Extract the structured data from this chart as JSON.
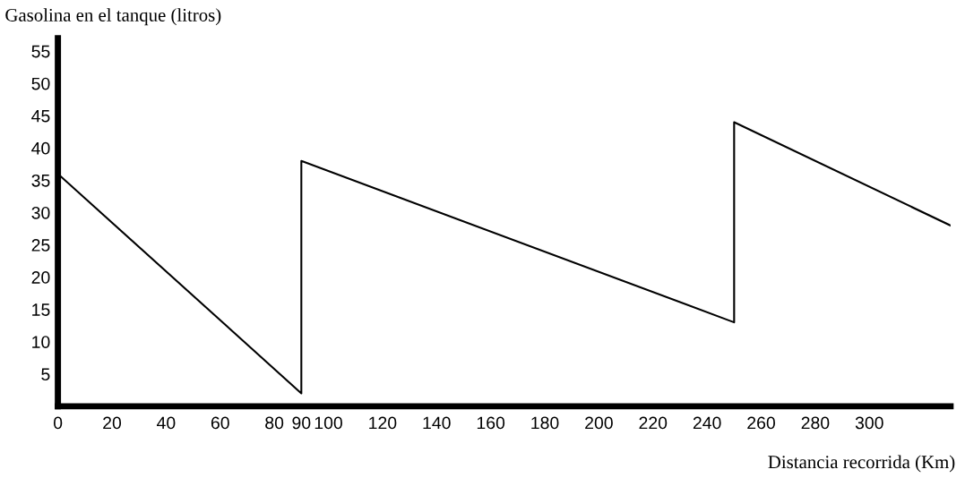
{
  "chart_data": {
    "type": "line",
    "ylabel": "Gasolina en el tanque (litros)",
    "xlabel": "Distancia recorrida (Km)",
    "x": [
      0,
      90,
      90,
      250,
      250,
      330
    ],
    "series": [
      {
        "color": "#000000",
        "values": [
          36,
          2,
          38,
          13,
          44,
          28
        ]
      }
    ],
    "xlim": [
      0,
      330
    ],
    "xticks": [
      0,
      20,
      40,
      60,
      80,
      90,
      100,
      120,
      140,
      160,
      180,
      200,
      220,
      240,
      260,
      280,
      300
    ],
    "ylim": [
      0,
      57
    ],
    "yticks": [
      5,
      10,
      15,
      20,
      25,
      30,
      35,
      40,
      45,
      50,
      55
    ]
  }
}
